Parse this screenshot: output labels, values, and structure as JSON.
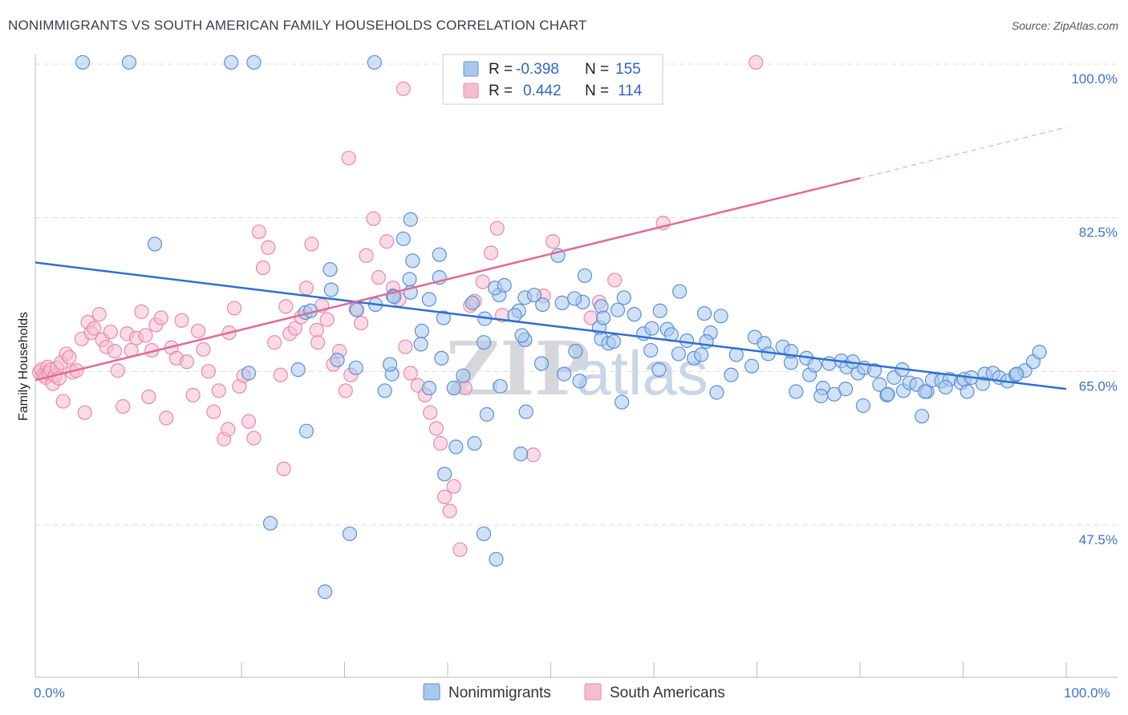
{
  "header": {
    "title": "NONIMMIGRANTS VS SOUTH AMERICAN FAMILY HOUSEHOLDS CORRELATION CHART",
    "source": "Source: ZipAtlas.com"
  },
  "watermark": {
    "zip": "ZIP",
    "atlas": "atlas"
  },
  "legend": {
    "r_label": "R =",
    "n_label": "N =",
    "rows": [
      {
        "r": "-0.398",
        "n": "155"
      },
      {
        "r": "0.442",
        "n": "114"
      }
    ]
  },
  "bottom_legend": {
    "series1": "Nonimmigrants",
    "series2": "South Americans"
  },
  "axes": {
    "ylabel": "Family Households",
    "x_min_label": "0.0%",
    "x_max_label": "100.0%",
    "y_tick_labels": [
      "100.0%",
      "82.5%",
      "65.0%",
      "47.5%"
    ]
  },
  "colors": {
    "blue_fill": "#a9c8ef",
    "blue_stroke": "#5b8fd6",
    "blue_line": "#2f6fd1",
    "pink_fill": "#f6bdd0",
    "pink_stroke": "#e889a9",
    "pink_line": "#e36a93"
  },
  "chart_data": {
    "type": "scatter",
    "xlim": [
      0,
      100
    ],
    "ylim": [
      36,
      102
    ],
    "y_ticks": [
      100.0,
      82.5,
      65.0,
      47.5
    ],
    "grid": true,
    "series": [
      {
        "name": "Nonimmigrants",
        "trend": {
          "x": [
            0,
            100
          ],
          "y": [
            77.4,
            63.0
          ]
        },
        "points": [
          [
            4.6,
            100.2
          ],
          [
            9.1,
            100.2
          ],
          [
            19,
            100.2
          ],
          [
            21.2,
            100.2
          ],
          [
            32.9,
            100.2
          ],
          [
            11.6,
            79.5
          ],
          [
            28.6,
            76.6
          ],
          [
            28.7,
            74.3
          ],
          [
            33,
            72.6
          ],
          [
            35.7,
            80.1
          ],
          [
            36.6,
            77.6
          ],
          [
            36.4,
            82.3
          ],
          [
            26.2,
            71.7
          ],
          [
            26.7,
            71.9
          ],
          [
            20.7,
            64.8
          ],
          [
            25.5,
            65.2
          ],
          [
            31.2,
            72
          ],
          [
            34.7,
            73.6
          ],
          [
            34.8,
            73.5
          ],
          [
            36.4,
            74
          ],
          [
            36.3,
            75.5
          ],
          [
            39.2,
            75.7
          ],
          [
            39.2,
            78.3
          ],
          [
            37.5,
            69.6
          ],
          [
            43.6,
            71
          ],
          [
            45,
            73.7
          ],
          [
            43.5,
            68.3
          ],
          [
            44.6,
            74.5
          ],
          [
            45.5,
            74.8
          ],
          [
            47.5,
            73.4
          ],
          [
            47.5,
            68.6
          ],
          [
            50.7,
            78.2
          ],
          [
            51.1,
            72.8
          ],
          [
            53.1,
            72.9
          ],
          [
            53.3,
            75.9
          ],
          [
            52.3,
            73.3
          ],
          [
            54.9,
            68.7
          ],
          [
            54.9,
            72.4
          ],
          [
            54.7,
            70
          ],
          [
            55.6,
            68.2
          ],
          [
            55.1,
            71.1
          ],
          [
            56.5,
            72
          ],
          [
            57.1,
            73.4
          ],
          [
            58.1,
            71.5
          ],
          [
            59,
            69.3
          ],
          [
            59.7,
            67.4
          ],
          [
            60.6,
            71.9
          ],
          [
            59.8,
            69.9
          ],
          [
            61.3,
            69.8
          ],
          [
            61.7,
            69.2
          ],
          [
            62.5,
            74.1
          ],
          [
            63.9,
            66.5
          ],
          [
            63.2,
            68.5
          ],
          [
            64.6,
            66.9
          ],
          [
            65.5,
            69.4
          ],
          [
            64.9,
            71.6
          ],
          [
            65.1,
            68.4
          ],
          [
            66.5,
            71.3
          ],
          [
            67.5,
            64.6
          ],
          [
            68,
            66.9
          ],
          [
            69.8,
            68.9
          ],
          [
            70.7,
            68.2
          ],
          [
            71.1,
            67
          ],
          [
            72.5,
            67.8
          ],
          [
            73.3,
            66
          ],
          [
            73.3,
            67.3
          ],
          [
            74.8,
            66.5
          ],
          [
            75.1,
            64.6
          ],
          [
            75.6,
            65.7
          ],
          [
            76.4,
            63.1
          ],
          [
            77,
            65.9
          ],
          [
            78.2,
            66.2
          ],
          [
            78.7,
            65.5
          ],
          [
            79.8,
            64.8
          ],
          [
            80.4,
            65.4
          ],
          [
            81.9,
            63.5
          ],
          [
            82.6,
            62.3
          ],
          [
            83.3,
            64.3
          ],
          [
            84.2,
            62.8
          ],
          [
            84.8,
            63.7
          ],
          [
            85.5,
            63.5
          ],
          [
            86.5,
            62.7
          ],
          [
            87,
            64
          ],
          [
            87.9,
            63.9
          ],
          [
            88.7,
            64.1
          ],
          [
            89.8,
            63.7
          ],
          [
            90.1,
            64.1
          ],
          [
            90.8,
            64.3
          ],
          [
            92.1,
            64.7
          ],
          [
            92.9,
            64.8
          ],
          [
            93.5,
            64.3
          ],
          [
            94.3,
            63.9
          ],
          [
            95.1,
            64.6
          ],
          [
            96,
            65.1
          ],
          [
            96.8,
            66.1
          ],
          [
            97.4,
            67.2
          ],
          [
            88.3,
            63.2
          ],
          [
            86,
            59.9
          ],
          [
            80.3,
            61.1
          ],
          [
            77.5,
            62.4
          ],
          [
            81.4,
            65.1
          ],
          [
            84.1,
            65.2
          ],
          [
            91.9,
            63.6
          ],
          [
            95.2,
            64.7
          ],
          [
            79.3,
            66.1
          ],
          [
            90.4,
            62.7
          ],
          [
            86.3,
            62.7
          ],
          [
            82.7,
            62.4
          ],
          [
            69.5,
            65.6
          ],
          [
            73.8,
            62.7
          ],
          [
            76.2,
            62.2
          ],
          [
            78.6,
            63
          ],
          [
            56.9,
            61.5
          ],
          [
            60.5,
            65.2
          ],
          [
            56.1,
            68.4
          ],
          [
            52.4,
            67.3
          ],
          [
            66.1,
            62.6
          ],
          [
            62.4,
            67
          ],
          [
            43.8,
            60.1
          ],
          [
            47.1,
            55.6
          ],
          [
            45.1,
            63.3
          ],
          [
            40.6,
            63.1
          ],
          [
            49.1,
            65.9
          ],
          [
            52.8,
            63.9
          ],
          [
            51.3,
            64.7
          ],
          [
            34.6,
            64.7
          ],
          [
            31.1,
            65.4
          ],
          [
            39.4,
            66.5
          ],
          [
            38.2,
            63.1
          ],
          [
            41.5,
            64.5
          ],
          [
            39.6,
            71.1
          ],
          [
            38.2,
            73.2
          ],
          [
            37.4,
            68.1
          ],
          [
            47.2,
            69.1
          ],
          [
            49.2,
            72.6
          ],
          [
            48.4,
            73.7
          ],
          [
            46.9,
            71.9
          ],
          [
            42.4,
            72.8
          ],
          [
            46.5,
            71.4
          ],
          [
            29.3,
            66.3
          ],
          [
            26.3,
            58.2
          ],
          [
            22.8,
            47.7
          ],
          [
            30.5,
            46.5
          ],
          [
            28.1,
            39.9
          ],
          [
            39.7,
            53.3
          ],
          [
            40.8,
            56.4
          ],
          [
            42.6,
            56.8
          ],
          [
            43.5,
            46.5
          ],
          [
            44.7,
            43.6
          ],
          [
            33.9,
            62.8
          ],
          [
            34.4,
            65.8
          ],
          [
            47.6,
            60.4
          ]
        ]
      },
      {
        "name": "South Americans",
        "trend": {
          "x": [
            0,
            80
          ],
          "y": [
            64.0,
            87.0
          ]
        },
        "trend_extension": {
          "x": [
            80,
            100
          ],
          "y": [
            87.0,
            92.8
          ]
        },
        "points": [
          [
            0.4,
            64.9
          ],
          [
            0.6,
            65.2
          ],
          [
            0.8,
            64.6
          ],
          [
            1,
            64.3
          ],
          [
            1.2,
            65.5
          ],
          [
            1.3,
            64.8
          ],
          [
            1.5,
            65.2
          ],
          [
            1.7,
            63.6
          ],
          [
            1.9,
            64.5
          ],
          [
            2.1,
            65.4
          ],
          [
            2.3,
            64.2
          ],
          [
            2.5,
            66
          ],
          [
            2.7,
            61.6
          ],
          [
            3,
            67
          ],
          [
            3.3,
            66.6
          ],
          [
            3.6,
            64.9
          ],
          [
            4,
            65.1
          ],
          [
            4.5,
            68.7
          ],
          [
            4.8,
            60.3
          ],
          [
            5.1,
            70.6
          ],
          [
            5.4,
            69.4
          ],
          [
            5.7,
            69.9
          ],
          [
            6.2,
            71.5
          ],
          [
            6.5,
            68.6
          ],
          [
            6.9,
            67.8
          ],
          [
            7.3,
            69.5
          ],
          [
            7.7,
            67.3
          ],
          [
            8,
            65.1
          ],
          [
            8.5,
            61
          ],
          [
            8.9,
            69.3
          ],
          [
            9.3,
            67.4
          ],
          [
            9.8,
            68.8
          ],
          [
            10.3,
            71.8
          ],
          [
            10.7,
            69.1
          ],
          [
            11,
            62.1
          ],
          [
            11.3,
            67.4
          ],
          [
            11.7,
            70.3
          ],
          [
            12.2,
            71.1
          ],
          [
            12.7,
            59.7
          ],
          [
            13.2,
            67.7
          ],
          [
            13.7,
            66.5
          ],
          [
            14.2,
            70.8
          ],
          [
            14.7,
            66.1
          ],
          [
            15.3,
            62.3
          ],
          [
            15.8,
            69.6
          ],
          [
            16.3,
            67.5
          ],
          [
            16.8,
            65
          ],
          [
            17.3,
            60.4
          ],
          [
            17.8,
            62.8
          ],
          [
            18.3,
            57.3
          ],
          [
            18.8,
            69.4
          ],
          [
            19.3,
            72.2
          ],
          [
            19.8,
            63.3
          ],
          [
            20.2,
            64.5
          ],
          [
            20.7,
            59.3
          ],
          [
            21.2,
            57.4
          ],
          [
            21.7,
            80.9
          ],
          [
            22.1,
            76.8
          ],
          [
            22.6,
            79.1
          ],
          [
            23.2,
            68.3
          ],
          [
            23.8,
            64.6
          ],
          [
            24.3,
            72.4
          ],
          [
            24.7,
            69.3
          ],
          [
            25.2,
            69.9
          ],
          [
            25.8,
            71.2
          ],
          [
            26.3,
            74.5
          ],
          [
            26.8,
            79.5
          ],
          [
            27.3,
            69.7
          ],
          [
            27.8,
            72.5
          ],
          [
            28.3,
            70.9
          ],
          [
            28.9,
            65.8
          ],
          [
            29.5,
            67.3
          ],
          [
            30.1,
            62.8
          ],
          [
            30.6,
            64.6
          ],
          [
            31.1,
            72.1
          ],
          [
            31.6,
            70.5
          ],
          [
            32.1,
            78.2
          ],
          [
            32.8,
            82.4
          ],
          [
            33.3,
            75.7
          ],
          [
            34.1,
            79.8
          ],
          [
            34.7,
            74.5
          ],
          [
            35.3,
            73.2
          ],
          [
            35.9,
            67.8
          ],
          [
            36.4,
            64.8
          ],
          [
            37.1,
            63.4
          ],
          [
            37.8,
            62.3
          ],
          [
            38.3,
            60.3
          ],
          [
            38.9,
            58.5
          ],
          [
            39.3,
            56.8
          ],
          [
            39.7,
            50.7
          ],
          [
            40.2,
            49.1
          ],
          [
            40.6,
            51.9
          ],
          [
            41.2,
            44.7
          ],
          [
            41.7,
            63.1
          ],
          [
            42.2,
            72.5
          ],
          [
            42.6,
            73
          ],
          [
            43.4,
            75.2
          ],
          [
            44.2,
            78.5
          ],
          [
            44.8,
            81.3
          ],
          [
            45.3,
            71.4
          ],
          [
            48.3,
            55.5
          ],
          [
            49.3,
            73.6
          ],
          [
            50.2,
            79.8
          ],
          [
            53.9,
            71.1
          ],
          [
            54.7,
            72.9
          ],
          [
            56.2,
            75.4
          ],
          [
            60.9,
            81.9
          ],
          [
            69.9,
            100.2
          ],
          [
            30.4,
            89.3
          ],
          [
            35.7,
            97.2
          ],
          [
            43.2,
            100.2
          ],
          [
            27.4,
            68.3
          ],
          [
            24.1,
            53.9
          ],
          [
            18.7,
            58.4
          ]
        ]
      }
    ]
  }
}
